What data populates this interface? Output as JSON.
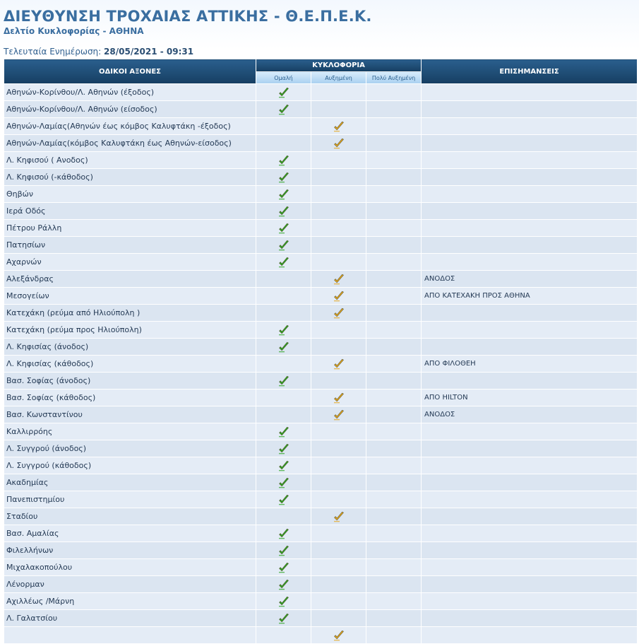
{
  "header": {
    "title": "ΔΙΕΥΘΥΝΣΗ ΤΡΟΧΑΙΑΣ ΑΤΤΙΚΗΣ - Θ.Ε.Π.Ε.Κ.",
    "subtitle": "Δελτίο Κυκλοφορίας - ΑΘΗΝΑ",
    "updated_label": "Τελευταία Ενημέρωση:",
    "updated_value": "28/05/2021 - 09:31"
  },
  "table": {
    "col_roads": "ΟΔΙΚΟΙ ΑΞΟΝΕΣ",
    "col_traffic": "ΚΥΚΛΟΦΟΡΙΑ",
    "col_notes": "ΕΠΙΣΗΜΑΝΣΕΙΣ",
    "sub_normal": "Ομαλή",
    "sub_increased": "Αυξημένη",
    "sub_very_increased": "Πολύ Αυξημένη"
  },
  "colors": {
    "normal_check": "#2aa41e",
    "increased_check": "#e8a517",
    "header_dark": "#163e62",
    "title_blue": "#3a6ea0"
  },
  "icons": {
    "normal": "green-check-icon",
    "increased": "orange-check-icon"
  },
  "rows": [
    {
      "road": "Αθηνών-Κορίνθου/Λ. Αθηνών (έξοδος)",
      "status": "normal",
      "note": ""
    },
    {
      "road": "Αθηνών-Κορίνθου/Λ. Αθηνών (είσοδος)",
      "status": "normal",
      "note": ""
    },
    {
      "road": "Αθηνών-Λαμίας(Αθηνών έως κόμβος Καλυφτάκη -έξοδος)",
      "status": "increased",
      "note": ""
    },
    {
      "road": "Αθηνών-Λαμίας(κόμβος Καλυφτάκη έως Αθηνών-είσοδος)",
      "status": "increased",
      "note": ""
    },
    {
      "road": "Λ. Κηφισού ( Ανοδος)",
      "status": "normal",
      "note": ""
    },
    {
      "road": "Λ. Κηφισού (-κάθοδος)",
      "status": "normal",
      "note": ""
    },
    {
      "road": "Θηβών",
      "status": "normal",
      "note": ""
    },
    {
      "road": "Ιερά Οδός",
      "status": "normal",
      "note": ""
    },
    {
      "road": "Πέτρου Ράλλη",
      "status": "normal",
      "note": ""
    },
    {
      "road": "Πατησίων",
      "status": "normal",
      "note": ""
    },
    {
      "road": "Αχαρνών",
      "status": "normal",
      "note": ""
    },
    {
      "road": "Αλεξάνδρας",
      "status": "increased",
      "note": "ΑΝΟΔΟΣ"
    },
    {
      "road": "Μεσογείων",
      "status": "increased",
      "note": "ΑΠΟ ΚΑΤΕΧΑΚΗ ΠΡΟΣ ΑΘΗΝΑ"
    },
    {
      "road": "Κατεχάκη (ρεύμα από Ηλιούπολη )",
      "status": "increased",
      "note": ""
    },
    {
      "road": "Κατεχάκη (ρεύμα προς Ηλιούπολη)",
      "status": "normal",
      "note": ""
    },
    {
      "road": "Λ. Κηφισίας (άνοδος)",
      "status": "normal",
      "note": ""
    },
    {
      "road": "Λ. Κηφισίας (κάθοδος)",
      "status": "increased",
      "note": "ΑΠΟ ΦΙΛΟΘΕΗ"
    },
    {
      "road": "Βασ. Σοφίας (άνοδος)",
      "status": "normal",
      "note": ""
    },
    {
      "road": "Βασ. Σοφίας (κάθοδος)",
      "status": "increased",
      "note": "ΑΠΟ HILTON"
    },
    {
      "road": "Βασ. Κωνσταντίνου",
      "status": "increased",
      "note": "ΑΝΟΔΟΣ"
    },
    {
      "road": "Καλλιρρόης",
      "status": "normal",
      "note": ""
    },
    {
      "road": "Λ. Συγγρού (άνοδος)",
      "status": "normal",
      "note": ""
    },
    {
      "road": "Λ. Συγγρού (κάθοδος)",
      "status": "normal",
      "note": ""
    },
    {
      "road": "Ακαδημίας",
      "status": "normal",
      "note": ""
    },
    {
      "road": "Πανεπιστημίου",
      "status": "normal",
      "note": ""
    },
    {
      "road": "Σταδίου",
      "status": "increased",
      "note": ""
    },
    {
      "road": "Βασ. Αμαλίας",
      "status": "normal",
      "note": ""
    },
    {
      "road": "Φιλελλήνων",
      "status": "normal",
      "note": ""
    },
    {
      "road": "Μιχαλακοπούλου",
      "status": "normal",
      "note": ""
    },
    {
      "road": "Λένορμαν",
      "status": "normal",
      "note": ""
    },
    {
      "road": "Αχιλλέως /Μάρνη",
      "status": "normal",
      "note": ""
    },
    {
      "road": "Λ. Γαλατσίου",
      "status": "normal",
      "note": ""
    },
    {
      "road": "",
      "status": "increased",
      "note": ""
    }
  ]
}
